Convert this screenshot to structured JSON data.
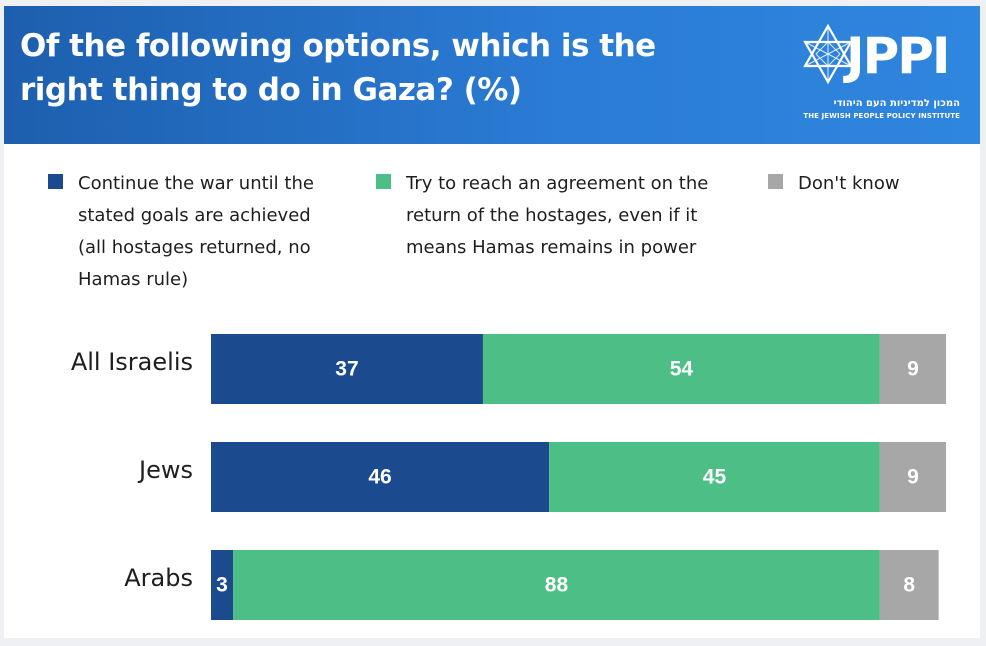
{
  "header": {
    "title": "Of the following options, which is the right thing to do in Gaza? (%)"
  },
  "logo": {
    "wordmark": "JPPI",
    "hebrew": "המכון למדיניות העם היהודי",
    "english": "THE JEWISH PEOPLE POLICY INSTITUTE",
    "icon": "star-of-david-icon"
  },
  "colors": {
    "header": "#1d5fae",
    "continue_war": "#1b4a8f",
    "agreement": "#4dbf86",
    "dont_know": "#a7a7a7"
  },
  "chart_data": {
    "type": "bar",
    "orientation": "horizontal",
    "stacked": true,
    "title": "Of the following options, which is the right thing to do in Gaza? (%)",
    "categories": [
      "All Israelis",
      "Jews",
      "Arabs"
    ],
    "series": [
      {
        "name": "Continue the war until the stated goals are achieved (all hostages returned, no Hamas rule)",
        "values": [
          37,
          46,
          3
        ],
        "color": "#1b4a8f"
      },
      {
        "name": "Try to reach an agreement on the return of the hostages, even if it means Hamas remains in power",
        "values": [
          54,
          45,
          88
        ],
        "color": "#4dbf86"
      },
      {
        "name": "Don't know",
        "values": [
          9,
          9,
          8
        ],
        "color": "#a7a7a7"
      }
    ],
    "xlim": [
      0,
      100
    ],
    "grid": false,
    "legend": "top"
  }
}
